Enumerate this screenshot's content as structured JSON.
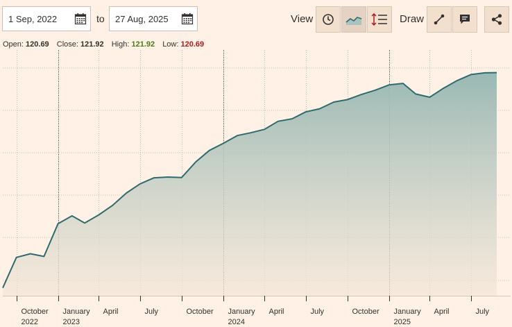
{
  "range": {
    "from": "1 Sep, 2022",
    "to_label": "to",
    "to": "27 Aug, 2025"
  },
  "view": {
    "label": "View",
    "buttons": [
      "clock-icon",
      "line-chart-icon",
      "indicators-icon"
    ]
  },
  "draw": {
    "label": "Draw",
    "buttons": [
      "draw-line-icon",
      "annotation-icon"
    ]
  },
  "share": {
    "icon": "share-icon"
  },
  "ohlc": {
    "open_label": "Open:",
    "open": "120.69",
    "close_label": "Close:",
    "close": "121.92",
    "high_label": "High:",
    "high": "121.92",
    "low_label": "Low:",
    "low": "120.69"
  },
  "colors": {
    "line": "#2e6b6e",
    "fill_top": "#94b6b1",
    "fill_bottom": "#f4e6d8",
    "high": "#4a7a1a",
    "low": "#b31b1b"
  },
  "chart_data": {
    "type": "area",
    "title": "",
    "xlabel": "",
    "ylabel": "",
    "grid": true,
    "x_ticks": [
      {
        "date": "2022-10-01",
        "label": [
          "October",
          "2022"
        ],
        "year_start": false
      },
      {
        "date": "2023-01-01",
        "label": [
          "January",
          "2023"
        ],
        "year_start": true
      },
      {
        "date": "2023-04-01",
        "label": [
          "April"
        ],
        "year_start": false
      },
      {
        "date": "2023-07-01",
        "label": [
          "July"
        ],
        "year_start": false
      },
      {
        "date": "2023-10-01",
        "label": [
          "October"
        ],
        "year_start": false
      },
      {
        "date": "2024-01-01",
        "label": [
          "January",
          "2024"
        ],
        "year_start": true
      },
      {
        "date": "2024-04-01",
        "label": [
          "April"
        ],
        "year_start": false
      },
      {
        "date": "2024-07-01",
        "label": [
          "July"
        ],
        "year_start": false
      },
      {
        "date": "2024-10-01",
        "label": [
          "October"
        ],
        "year_start": false
      },
      {
        "date": "2025-01-01",
        "label": [
          "January",
          "2025"
        ],
        "year_start": true
      },
      {
        "date": "2025-04-01",
        "label": [
          "April"
        ],
        "year_start": false
      },
      {
        "date": "2025-07-01",
        "label": [
          "July"
        ],
        "year_start": false
      }
    ],
    "x_range": [
      "2022-09-01",
      "2025-08-27"
    ],
    "y_range": [
      0,
      100
    ],
    "series": [
      {
        "points": [
          [
            "2022-09-01",
            3.2
          ],
          [
            "2022-10-01",
            15.6
          ],
          [
            "2022-11-01",
            17.1
          ],
          [
            "2022-12-01",
            16.0
          ],
          [
            "2023-01-01",
            29.3
          ],
          [
            "2023-02-01",
            32.5
          ],
          [
            "2023-03-01",
            29.6
          ],
          [
            "2023-04-01",
            32.9
          ],
          [
            "2023-05-01",
            36.7
          ],
          [
            "2023-06-01",
            41.8
          ],
          [
            "2023-07-01",
            45.5
          ],
          [
            "2023-08-01",
            48.0
          ],
          [
            "2023-09-01",
            48.3
          ],
          [
            "2023-10-01",
            48.1
          ],
          [
            "2023-11-01",
            54.4
          ],
          [
            "2023-12-01",
            59.1
          ],
          [
            "2024-01-01",
            62.0
          ],
          [
            "2024-02-01",
            65.2
          ],
          [
            "2024-03-01",
            66.3
          ],
          [
            "2024-04-01",
            67.7
          ],
          [
            "2024-05-01",
            71.0
          ],
          [
            "2024-06-01",
            72.0
          ],
          [
            "2024-07-01",
            74.8
          ],
          [
            "2024-08-01",
            76.1
          ],
          [
            "2024-09-01",
            78.8
          ],
          [
            "2024-10-01",
            79.8
          ],
          [
            "2024-11-01",
            81.9
          ],
          [
            "2024-12-01",
            83.6
          ],
          [
            "2025-01-01",
            85.8
          ],
          [
            "2025-02-01",
            86.4
          ],
          [
            "2025-03-01",
            82.1
          ],
          [
            "2025-04-01",
            80.8
          ],
          [
            "2025-05-01",
            84.4
          ],
          [
            "2025-06-01",
            87.6
          ],
          [
            "2025-07-01",
            90.0
          ],
          [
            "2025-08-01",
            90.7
          ],
          [
            "2025-08-27",
            90.8
          ]
        ]
      }
    ]
  }
}
